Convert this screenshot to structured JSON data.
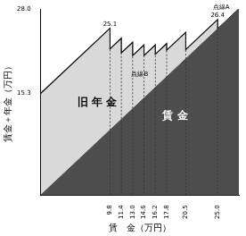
{
  "chart_data": {
    "type": "line",
    "x_label": "賃　金（万円）",
    "y_label": "賃金＋年金（万円）",
    "xlim": [
      0,
      28
    ],
    "ylim": [
      0,
      28
    ],
    "xticks": [
      9.8,
      11.4,
      {
        "value": 13,
        "label": "13.0"
      },
      14.6,
      16.2,
      17.8,
      20.5,
      {
        "value": 25,
        "label": "25.0"
      }
    ],
    "yticks": [
      15.3,
      {
        "value": 28,
        "label": "28.0"
      }
    ],
    "grid": false,
    "series": [
      {
        "color": "#d9d9d9",
        "x": [
          0,
          9.8,
          9.8,
          11.4,
          11.4,
          13,
          13,
          14.6,
          14.6,
          16.2,
          16.2,
          17.8,
          17.8,
          20.5,
          20.5,
          25,
          25,
          28
        ],
        "values": [
          15.3,
          25.1,
          22,
          23.6,
          21.4,
          23,
          21,
          22.6,
          21,
          22.6,
          21.2,
          22.8,
          21.8,
          24.5,
          21.9,
          26.4,
          25,
          28
        ]
      },
      {
        "color": "#4d4d4d",
        "x": [
          0,
          28
        ],
        "values": [
          0,
          28
        ]
      }
    ],
    "annotations": [
      {
        "text": "25.1",
        "x": 9.8,
        "y": 25.1
      },
      {
        "text": "26.4",
        "x": 25,
        "y": 26.4
      },
      {
        "text": "点線A",
        "x": 25.5,
        "y": 27.6
      },
      {
        "text": "点線B",
        "x": 14,
        "y": 17.5
      },
      {
        "text": "旧 年 金",
        "x": 8,
        "y": 13
      },
      {
        "text": "賃 金",
        "x": 19,
        "y": 11
      }
    ]
  }
}
